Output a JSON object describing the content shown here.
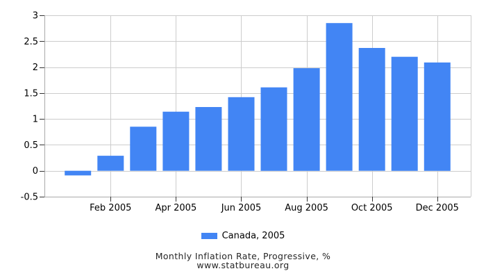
{
  "chart_data": {
    "type": "bar",
    "title": "Monthly Inflation Rate, Progressive, %",
    "subtitle": "www.statbureau.org",
    "legend_label": "Canada, 2005",
    "categories": [
      "Jan 2005",
      "Feb 2005",
      "Mar 2005",
      "Apr 2005",
      "May 2005",
      "Jun 2005",
      "Jul 2005",
      "Aug 2005",
      "Sep 2005",
      "Oct 2005",
      "Nov 2005",
      "Dec 2005"
    ],
    "values": [
      -0.09,
      0.29,
      0.85,
      1.14,
      1.23,
      1.42,
      1.61,
      1.98,
      2.85,
      2.37,
      2.2,
      2.09
    ],
    "x_tick_indices": [
      1,
      3,
      5,
      7,
      9,
      11
    ],
    "x_tick_labels": [
      "Feb 2005",
      "Apr 2005",
      "Jun 2005",
      "Aug 2005",
      "Oct 2005",
      "Dec 2005"
    ],
    "y_ticks": [
      -0.5,
      0,
      0.5,
      1,
      1.5,
      2,
      2.5,
      3
    ],
    "ylim": [
      -0.5,
      3
    ],
    "grid_on": true,
    "legend_position": "bottom",
    "colors": {
      "bar": "#4285f4",
      "grid": "#cccccc",
      "axis": "#a9a9a9",
      "tick": "#333333",
      "label": "#000000"
    }
  }
}
